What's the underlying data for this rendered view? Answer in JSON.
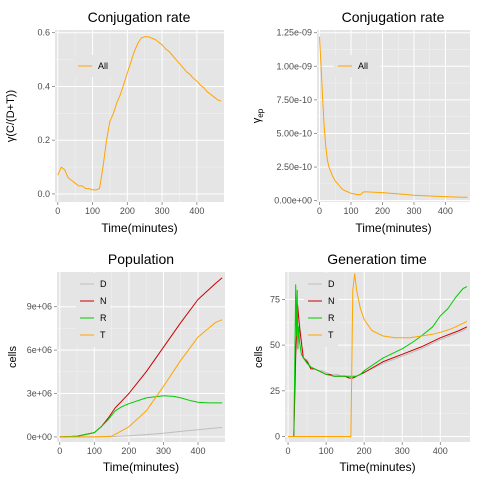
{
  "chart_data": [
    {
      "type": "line",
      "title": "Conjugation rate",
      "xlabel": "Time(minutes)",
      "ylabel": "γ(C/(D+T))",
      "xlim": [
        -8,
        478
      ],
      "ylim": [
        -0.03,
        0.61
      ],
      "xticks": [
        0,
        100,
        200,
        300,
        400
      ],
      "yticks": [
        0.0,
        0.2,
        0.4,
        0.6
      ],
      "ytick_labels": [
        "0.0",
        "0.2",
        "0.4",
        "0.6"
      ],
      "grid": true,
      "legend_position": "top-left inside",
      "series": [
        {
          "name": "All",
          "color": "#FFA500",
          "x": [
            0,
            10,
            20,
            30,
            40,
            50,
            60,
            70,
            80,
            90,
            100,
            110,
            120,
            130,
            140,
            150,
            160,
            170,
            180,
            190,
            200,
            210,
            220,
            230,
            240,
            250,
            260,
            270,
            280,
            290,
            300,
            310,
            320,
            330,
            340,
            350,
            360,
            370,
            380,
            390,
            400,
            410,
            420,
            430,
            440,
            450,
            460,
            470
          ],
          "y": [
            0.07,
            0.1,
            0.09,
            0.06,
            0.05,
            0.04,
            0.03,
            0.03,
            0.02,
            0.02,
            0.015,
            0.015,
            0.02,
            0.1,
            0.2,
            0.27,
            0.3,
            0.34,
            0.37,
            0.41,
            0.45,
            0.49,
            0.53,
            0.56,
            0.58,
            0.585,
            0.585,
            0.58,
            0.575,
            0.565,
            0.555,
            0.54,
            0.53,
            0.515,
            0.5,
            0.485,
            0.47,
            0.455,
            0.445,
            0.43,
            0.42,
            0.405,
            0.395,
            0.38,
            0.37,
            0.36,
            0.35,
            0.345
          ]
        }
      ]
    },
    {
      "type": "line",
      "title": "Conjugation rate",
      "xlabel": "Time(minutes)",
      "ylabel": "γ_ep",
      "ylabel_main": "γ",
      "ylabel_sub": "ep",
      "xlim": [
        -8,
        478
      ],
      "ylim": [
        -1e-11,
        1.27e-09
      ],
      "xticks": [
        0,
        100,
        200,
        300,
        400
      ],
      "yticks": [
        0,
        2.5e-10,
        5e-10,
        7.5e-10,
        1e-09,
        1.25e-09
      ],
      "ytick_labels": [
        "0.00e+00",
        "2.50e-10",
        "5.00e-10",
        "7.50e-10",
        "1.00e-09",
        "1.25e-09"
      ],
      "grid": true,
      "legend_position": "top-left inside",
      "series": [
        {
          "name": "All",
          "color": "#FFA500",
          "x": [
            0,
            5,
            10,
            15,
            20,
            25,
            30,
            40,
            50,
            60,
            70,
            80,
            90,
            100,
            110,
            120,
            130,
            140,
            150,
            200,
            250,
            300,
            350,
            400,
            450,
            470
          ],
          "y": [
            1.22e-09,
            1e-09,
            7.5e-10,
            5.5e-10,
            4e-10,
            3e-10,
            2.5e-10,
            1.9e-10,
            1.45e-10,
            1.2e-10,
            9e-11,
            7.5e-11,
            6.5e-11,
            5.5e-11,
            5e-11,
            4.5e-11,
            4.5e-11,
            6.5e-11,
            6.5e-11,
            6e-11,
            5e-11,
            4e-11,
            3.5e-11,
            3e-11,
            2.5e-11,
            2.5e-11
          ]
        }
      ]
    },
    {
      "type": "line",
      "title": "Population",
      "xlabel": "Time(minutes)",
      "ylabel": "cells",
      "xlim": [
        -8,
        478
      ],
      "ylim": [
        -350000.0,
        11400000.0
      ],
      "xticks": [
        0,
        100,
        200,
        300,
        400
      ],
      "yticks": [
        0,
        3000000.0,
        6000000.0,
        9000000.0
      ],
      "ytick_labels": [
        "0e+00",
        "3e+06",
        "6e+06",
        "9e+06"
      ],
      "grid": true,
      "legend_position": "top-left inside",
      "series": [
        {
          "name": "D",
          "color": "#BEBEBE",
          "x": [
            0,
            100,
            150,
            200,
            250,
            300,
            350,
            400,
            450,
            470
          ],
          "y": [
            0,
            0,
            20000,
            80000,
            160000,
            260000,
            380000,
            500000,
            620000,
            650000
          ]
        },
        {
          "name": "N",
          "color": "#CC0000",
          "x": [
            0,
            50,
            100,
            120,
            140,
            160,
            180,
            200,
            250,
            300,
            350,
            400,
            450,
            470
          ],
          "y": [
            0,
            50000,
            300000,
            700000,
            1300000,
            2000000,
            2500000,
            3000000,
            4500000,
            6200000,
            7900000,
            9500000,
            10600000,
            11000000
          ]
        },
        {
          "name": "R",
          "color": "#00CC00",
          "x": [
            0,
            50,
            100,
            120,
            140,
            160,
            180,
            200,
            250,
            300,
            330,
            350,
            380,
            400,
            430,
            470
          ],
          "y": [
            0,
            50000,
            300000,
            700000,
            1200000,
            1800000,
            2100000,
            2300000,
            2700000,
            2850000,
            2800000,
            2700000,
            2500000,
            2400000,
            2350000,
            2350000
          ]
        },
        {
          "name": "T",
          "color": "#FFA500",
          "x": [
            0,
            100,
            150,
            170,
            200,
            250,
            300,
            350,
            400,
            450,
            470
          ],
          "y": [
            0,
            0,
            50000,
            300000,
            700000,
            1800000,
            3500000,
            5300000,
            6900000,
            7900000,
            8100000
          ]
        }
      ]
    },
    {
      "type": "line",
      "title": "Generation time",
      "xlabel": "Time(minutes)",
      "ylabel": "cells",
      "xlim": [
        -8,
        478
      ],
      "ylim": [
        -3,
        90
      ],
      "xticks": [
        0,
        100,
        200,
        300,
        400
      ],
      "yticks": [
        0,
        25,
        50,
        75
      ],
      "ytick_labels": [
        "0",
        "25",
        "50",
        "75"
      ],
      "grid": true,
      "legend_position": "top-left inside",
      "series": [
        {
          "name": "D",
          "color": "#BEBEBE",
          "x": [
            0,
            15,
            20,
            25,
            30,
            40,
            50,
            60,
            70,
            80,
            90,
            100,
            110,
            120,
            130,
            140,
            150,
            160,
            170,
            180,
            200,
            250,
            300,
            350,
            400,
            450,
            470
          ],
          "y": [
            0,
            0,
            42,
            70,
            62,
            43,
            42,
            38,
            37,
            36,
            36,
            35,
            34,
            34,
            34,
            33,
            33,
            32,
            32,
            33,
            35,
            40,
            44,
            48,
            53,
            57,
            59
          ]
        },
        {
          "name": "N",
          "color": "#CC0000",
          "x": [
            15,
            20,
            25,
            30,
            40,
            50,
            60,
            70,
            80,
            90,
            100,
            110,
            120,
            130,
            140,
            150,
            160,
            170,
            180,
            200,
            250,
            300,
            350,
            400,
            450,
            470
          ],
          "y": [
            0,
            45,
            72,
            60,
            43,
            41,
            37,
            37,
            36,
            35,
            34,
            34,
            33,
            33,
            33,
            33,
            32,
            32,
            33,
            35,
            41,
            45,
            49,
            54,
            58,
            60
          ]
        },
        {
          "name": "R",
          "color": "#00CC00",
          "x": [
            15,
            18,
            20,
            22,
            24,
            26,
            28,
            30,
            35,
            40,
            50,
            60,
            70,
            80,
            100,
            120,
            140,
            160,
            170,
            180,
            190,
            200,
            250,
            300,
            330,
            350,
            380,
            400,
            420,
            440,
            460,
            470
          ],
          "y": [
            0,
            45,
            83,
            55,
            80,
            48,
            60,
            52,
            45,
            43,
            40,
            38,
            37,
            36,
            34,
            33,
            33,
            33,
            33,
            33,
            34,
            36,
            43,
            48,
            52,
            55,
            60,
            66,
            70,
            76,
            81,
            82
          ]
        },
        {
          "name": "T",
          "color": "#FFA500",
          "x": [
            0,
            165,
            170,
            175,
            180,
            190,
            200,
            220,
            250,
            280,
            300,
            320,
            350,
            380,
            400,
            430,
            460,
            470
          ],
          "y": [
            0,
            0,
            80,
            89,
            80,
            70,
            64,
            58,
            55,
            54,
            54,
            54,
            55,
            56,
            57,
            59,
            62,
            63
          ]
        }
      ]
    }
  ]
}
